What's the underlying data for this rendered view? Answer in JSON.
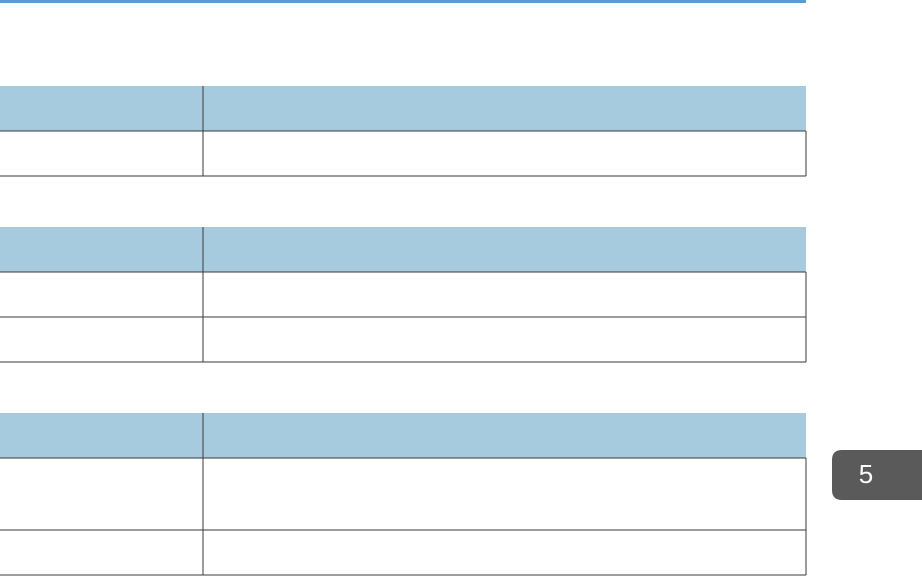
{
  "tab": "5"
}
